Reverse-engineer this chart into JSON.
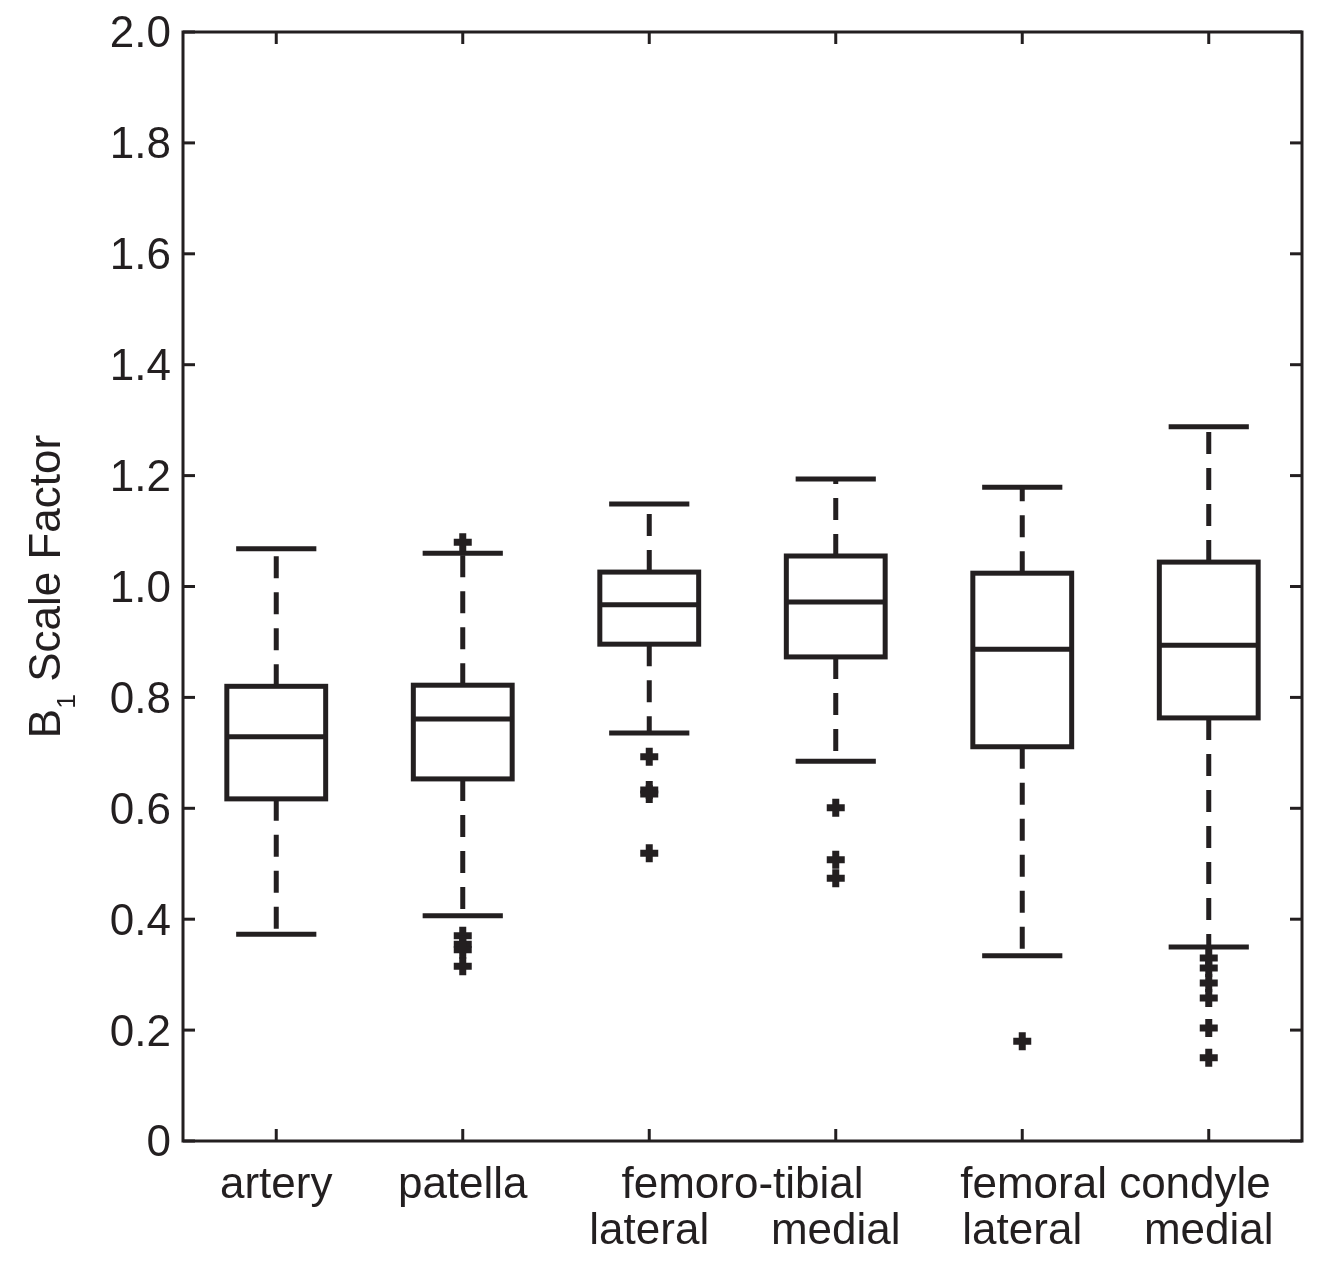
{
  "chart_data": {
    "type": "box",
    "ylabel": "B$_{1}$ Scale Factor",
    "categories": [
      "artery",
      "patella",
      "lateral",
      "medial",
      "lateral",
      "medial"
    ],
    "annotations": [
      "femoro-tibial",
      "femoral condyle"
    ],
    "color": "#231f20",
    "marker": "cross",
    "line_style": "dashed",
    "grid": false,
    "ylim": [
      0,
      2
    ],
    "yticks": [
      0,
      0.2,
      0.4,
      0.6,
      0.8,
      {
        "value": 1,
        "label": "1.0"
      },
      1.2,
      1.4,
      1.6,
      1.8,
      {
        "value": 2,
        "label": "2.0"
      }
    ],
    "boxes": [
      {
        "low": 0.373,
        "q1": 0.617,
        "median": 0.729,
        "q3": 0.82,
        "high": 1.068
      },
      {
        "low": 0.406,
        "q1": 0.653,
        "median": 0.761,
        "q3": 0.822,
        "high": 1.06,
        "outliers": [
          1.08,
          0.37,
          0.355,
          0.345,
          0.315
        ]
      },
      {
        "low": 0.736,
        "q1": 0.896,
        "median": 0.967,
        "q3": 1.026,
        "high": 1.149,
        "outliers": [
          0.693,
          0.633,
          0.626,
          0.519
        ]
      },
      {
        "low": 0.685,
        "q1": 0.873,
        "median": 0.972,
        "q3": 1.055,
        "high": 1.194,
        "outliers": [
          0.601,
          0.507,
          0.474
        ]
      },
      {
        "low": 0.334,
        "q1": 0.711,
        "median": 0.887,
        "q3": 1.024,
        "high": 1.179,
        "outliers": [
          0.18
        ]
      },
      {
        "low": 0.35,
        "q1": 0.763,
        "median": 0.894,
        "q3": 1.044,
        "high": 1.288,
        "outliers": [
          0.33,
          0.312,
          0.285,
          0.258,
          0.204,
          0.15
        ]
      }
    ]
  }
}
